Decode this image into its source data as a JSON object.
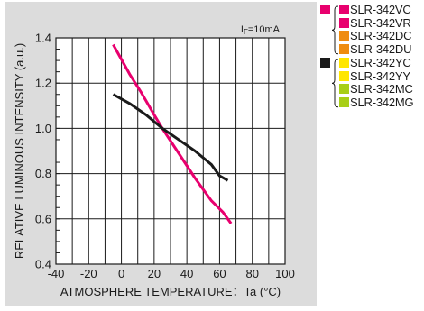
{
  "chart_data": {
    "type": "line",
    "annotation": "I F=10mA",
    "annotation_parts": {
      "main": "I",
      "sub": "F",
      "rest": "=10mA"
    },
    "xlabel": "ATMOSPHERE TEMPERATURE：Ta (°C)",
    "ylabel": "RELATIVE LUMINOUS INTENSITY (a.u.)",
    "xlim": [
      -40,
      100
    ],
    "ylim": [
      0.4,
      1.4
    ],
    "xticks": [
      -40,
      -20,
      0,
      20,
      40,
      60,
      80,
      100
    ],
    "yticks": [
      0.4,
      0.6,
      0.8,
      1.0,
      1.2,
      1.4
    ],
    "xtick_labels": [
      "-40",
      "-20",
      "0",
      "20",
      "40",
      "60",
      "80",
      "100"
    ],
    "ytick_labels": [
      "0.4",
      "0.6",
      "0.8",
      "1.0",
      "1.2",
      "1.4"
    ],
    "grid": true,
    "series": [
      {
        "color": "#e8006e",
        "x": [
          -5,
          5,
          12,
          20,
          25,
          35,
          45,
          55,
          62,
          67
        ],
        "y": [
          1.37,
          1.24,
          1.16,
          1.06,
          1.0,
          0.89,
          0.78,
          0.68,
          0.63,
          0.58
        ]
      },
      {
        "color": "#1a1a1a",
        "x": [
          -5,
          5,
          15,
          25,
          35,
          45,
          55,
          60,
          65
        ],
        "y": [
          1.15,
          1.11,
          1.06,
          1.0,
          0.95,
          0.9,
          0.84,
          0.79,
          0.77
        ]
      }
    ]
  },
  "legend": {
    "groups": [
      {
        "color": "#e8006e",
        "items": [
          {
            "label": "SLR-342VC",
            "color": "#e8006e"
          },
          {
            "label": "SLR-342VR",
            "color": "#e8006e"
          },
          {
            "label": "SLR-342DC",
            "color": "#ef8c10"
          },
          {
            "label": "SLR-342DU",
            "color": "#ef8c10"
          }
        ]
      },
      {
        "color": "#1a1a1a",
        "items": [
          {
            "label": "SLR-342YC",
            "color": "#ffe600"
          },
          {
            "label": "SLR-342YY",
            "color": "#ffe600"
          },
          {
            "label": "SLR-342MC",
            "color": "#a8cf17"
          },
          {
            "label": "SLR-342MG",
            "color": "#a8cf17"
          }
        ]
      }
    ]
  }
}
